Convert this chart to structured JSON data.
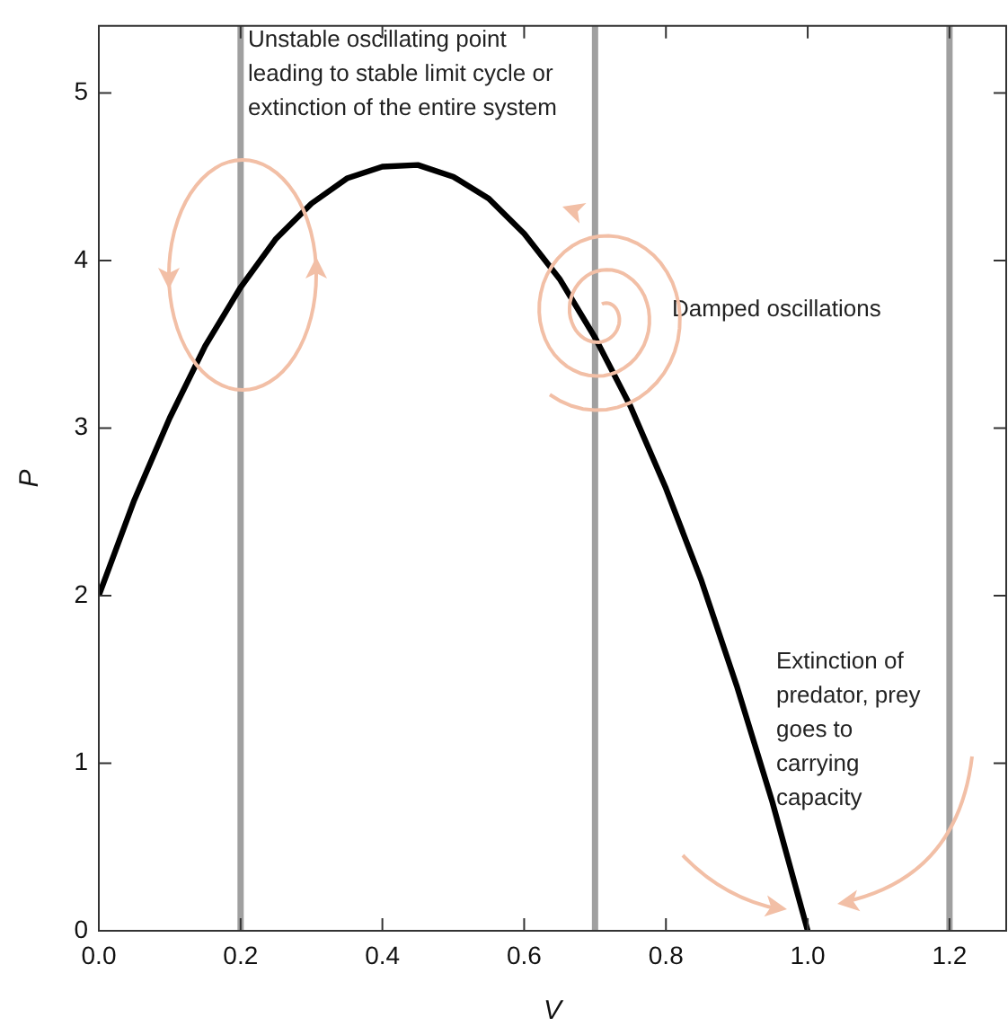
{
  "chart_data": {
    "type": "line",
    "xlabel": "V",
    "ylabel": "P",
    "xlim": [
      0,
      1.28
    ],
    "ylim": [
      0,
      5.4
    ],
    "xticks": [
      {
        "value": 0,
        "label": "0.0"
      },
      0.2,
      0.4,
      0.6,
      0.8,
      {
        "value": 1,
        "label": "1.0"
      },
      1.2
    ],
    "yticks": [
      0,
      1,
      2,
      3,
      4,
      5
    ],
    "grid": false,
    "legend": false,
    "marker": "none",
    "line_style": "solid",
    "series": [
      {
        "color": "#000000",
        "x": [
          0,
          0.05,
          0.1,
          0.15,
          0.2,
          0.25,
          0.3,
          0.35,
          0.4,
          0.45,
          0.5,
          0.55,
          0.6,
          0.65,
          0.7,
          0.75,
          0.8,
          0.85,
          0.9,
          0.95,
          1.0
        ],
        "values": [
          2,
          2.57,
          3.06,
          3.49,
          3.84,
          4.13,
          4.34,
          4.49,
          4.56,
          4.57,
          4.5,
          4.37,
          4.16,
          3.89,
          3.54,
          3.13,
          2.64,
          2.09,
          1.46,
          0.77,
          0
        ]
      }
    ],
    "ref_lines": [
      {
        "axis": "x",
        "value": 0.2,
        "color": "#a0a0a0"
      },
      {
        "axis": "x",
        "value": 0.7,
        "color": "#a0a0a0"
      },
      {
        "axis": "x",
        "value": 1.2,
        "color": "#a0a0a0"
      }
    ],
    "annotations": [
      "Unstable oscillating point leading to stable limit cycle or extinction of the entire system",
      "Damped oscillations",
      "Extinction of predator, prey goes to carrying capacity"
    ]
  }
}
